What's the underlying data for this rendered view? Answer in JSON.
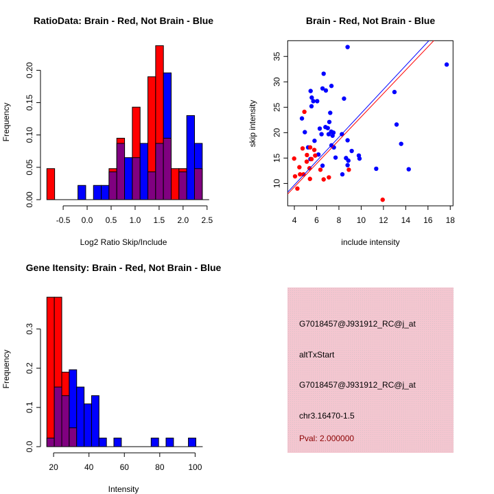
{
  "colors": {
    "red": "#ff0000",
    "blue": "#0000ff",
    "overlap": "#800080",
    "panel": "#f2c4cf",
    "pval": "#8b0000"
  },
  "chart_data": [
    {
      "type": "bar",
      "title": "RatioData: Brain - Red, Not Brain - Blue",
      "xlabel": "Log2 Ratio Skip/Include",
      "ylabel": "Frequency",
      "bin_start": -0.84,
      "bin_width": 0.162,
      "xlim": [
        -0.84,
        2.56
      ],
      "ylim": [
        0,
        0.245
      ],
      "xticks": [
        "-0.5",
        "0.0",
        "0.5",
        "1.0",
        "1.5",
        "2.0",
        "2.5"
      ],
      "xtick_values": [
        -0.5,
        0,
        0.5,
        1.0,
        1.5,
        2.0,
        2.5
      ],
      "yticks": [
        "0.00",
        "0.05",
        "0.10",
        "0.15",
        "0.20"
      ],
      "ytick_values": [
        0,
        0.05,
        0.1,
        0.15,
        0.2
      ],
      "series": [
        {
          "name": "Brain",
          "color": "red",
          "values": [
            0.048,
            0,
            0,
            0,
            0,
            0,
            0,
            0,
            0.048,
            0.095,
            0,
            0.143,
            0,
            0.19,
            0.238,
            0.095,
            0.048,
            0.048,
            0,
            0.048
          ]
        },
        {
          "name": "Not Brain",
          "color": "blue",
          "values": [
            0,
            0,
            0,
            0,
            0.022,
            0,
            0.022,
            0.022,
            0.043,
            0.087,
            0.065,
            0.065,
            0.087,
            0.043,
            0.087,
            0.196,
            0,
            0.043,
            0.13,
            0.087
          ]
        }
      ]
    },
    {
      "type": "scatter",
      "title": "Brain - Red, Not Brain - Blue",
      "xlabel": "include intensity",
      "ylabel": "skip intensity",
      "xlim": [
        3.4,
        18.25
      ],
      "ylim": [
        5.6,
        38.1
      ],
      "xticks": [
        "4",
        "6",
        "8",
        "10",
        "12",
        "14",
        "16",
        "18"
      ],
      "xtick_values": [
        4,
        6,
        8,
        10,
        12,
        14,
        16,
        18
      ],
      "yticks": [
        "10",
        "15",
        "20",
        "25",
        "30",
        "35"
      ],
      "ytick_values": [
        10,
        15,
        20,
        25,
        30,
        35
      ],
      "series": [
        {
          "name": "Not Brain",
          "color": "blue",
          "points": [
            [
              8.78,
              36.85
            ],
            [
              17.68,
              33.4
            ],
            [
              6.63,
              31.6
            ],
            [
              7.33,
              29.2
            ],
            [
              6.53,
              28.7
            ],
            [
              6.83,
              28.3
            ],
            [
              5.46,
              28.2
            ],
            [
              12.99,
              28.0
            ],
            [
              5.56,
              26.9
            ],
            [
              5.7,
              26.2
            ],
            [
              6.05,
              26.2
            ],
            [
              8.46,
              26.7
            ],
            [
              5.54,
              25.2
            ],
            [
              4.68,
              22.8
            ],
            [
              7.22,
              23.9
            ],
            [
              7.14,
              22.1
            ],
            [
              13.18,
              21.6
            ],
            [
              6.28,
              20.8
            ],
            [
              6.79,
              21.1
            ],
            [
              7.0,
              20.9
            ],
            [
              4.94,
              20.1
            ],
            [
              6.44,
              19.7
            ],
            [
              7.08,
              19.7
            ],
            [
              7.31,
              20.2
            ],
            [
              7.51,
              20.0
            ],
            [
              7.43,
              19.4
            ],
            [
              8.27,
              19.7
            ],
            [
              5.81,
              18.4
            ],
            [
              8.78,
              18.5
            ],
            [
              13.59,
              17.8
            ],
            [
              7.33,
              17.5
            ],
            [
              7.55,
              17.1
            ],
            [
              5.23,
              17.1
            ],
            [
              9.15,
              16.4
            ],
            [
              6.16,
              15.7
            ],
            [
              9.79,
              15.5
            ],
            [
              9.85,
              14.9
            ],
            [
              7.7,
              15.1
            ],
            [
              8.64,
              15.0
            ],
            [
              8.85,
              14.5
            ],
            [
              5.44,
              14.8
            ],
            [
              6.53,
              13.5
            ],
            [
              8.78,
              13.6
            ],
            [
              11.35,
              12.9
            ],
            [
              14.27,
              12.8
            ],
            [
              8.31,
              11.8
            ]
          ],
          "fit": {
            "slope": 2.35,
            "intercept": 0.31
          }
        },
        {
          "name": "Brain",
          "color": "red",
          "points": [
            [
              4.9,
              24.1
            ],
            [
              4.74,
              16.9
            ],
            [
              5.42,
              17.1
            ],
            [
              5.79,
              16.6
            ],
            [
              3.98,
              14.9
            ],
            [
              5.13,
              15.6
            ],
            [
              5.87,
              15.5
            ],
            [
              5.54,
              14.8
            ],
            [
              5.11,
              14.3
            ],
            [
              4.45,
              13.2
            ],
            [
              5.36,
              13.0
            ],
            [
              6.34,
              12.7
            ],
            [
              8.89,
              12.7
            ],
            [
              4.06,
              11.4
            ],
            [
              4.51,
              11.8
            ],
            [
              4.82,
              11.8
            ],
            [
              5.4,
              10.9
            ],
            [
              6.63,
              10.8
            ],
            [
              7.1,
              11.2
            ],
            [
              4.27,
              9.0
            ],
            [
              11.93,
              6.8
            ]
          ],
          "fit": {
            "slope": 2.3,
            "intercept": 0.11
          }
        }
      ]
    },
    {
      "type": "bar",
      "title": "Gene Itensity: Brain - Red, Not Brain - Blue",
      "xlabel": "Intensity",
      "ylabel": "Frequency",
      "bin_start": 16.2,
      "bin_width": 4.21,
      "xlim": [
        16.2,
        104.5
      ],
      "ylim": [
        0,
        0.39
      ],
      "xticks": [
        "20",
        "40",
        "60",
        "80",
        "100"
      ],
      "xtick_values": [
        20,
        40,
        60,
        80,
        100
      ],
      "yticks": [
        "0.0",
        "0.1",
        "0.2",
        "0.3"
      ],
      "ytick_values": [
        0,
        0.1,
        0.2,
        0.3
      ],
      "series": [
        {
          "name": "Brain",
          "color": "red",
          "values": [
            0.381,
            0.381,
            0.19,
            0.048,
            0,
            0,
            0,
            0,
            0,
            0,
            0,
            0,
            0,
            0,
            0,
            0,
            0,
            0,
            0,
            0
          ]
        },
        {
          "name": "Not Brain",
          "color": "blue",
          "values": [
            0.022,
            0.152,
            0.13,
            0.196,
            0.152,
            0.109,
            0.13,
            0.022,
            0,
            0.022,
            0,
            0,
            0,
            0,
            0.022,
            0,
            0.022,
            0,
            0,
            0.022
          ]
        }
      ]
    }
  ],
  "info_panel": {
    "probe": "G7018457@J931912_RC@j_at",
    "event_type": "altTxStart",
    "probe2": "G7018457@J931912_RC@j_at",
    "location": "chr3.16470-1.5",
    "pval": "Pval: 2.000000"
  }
}
